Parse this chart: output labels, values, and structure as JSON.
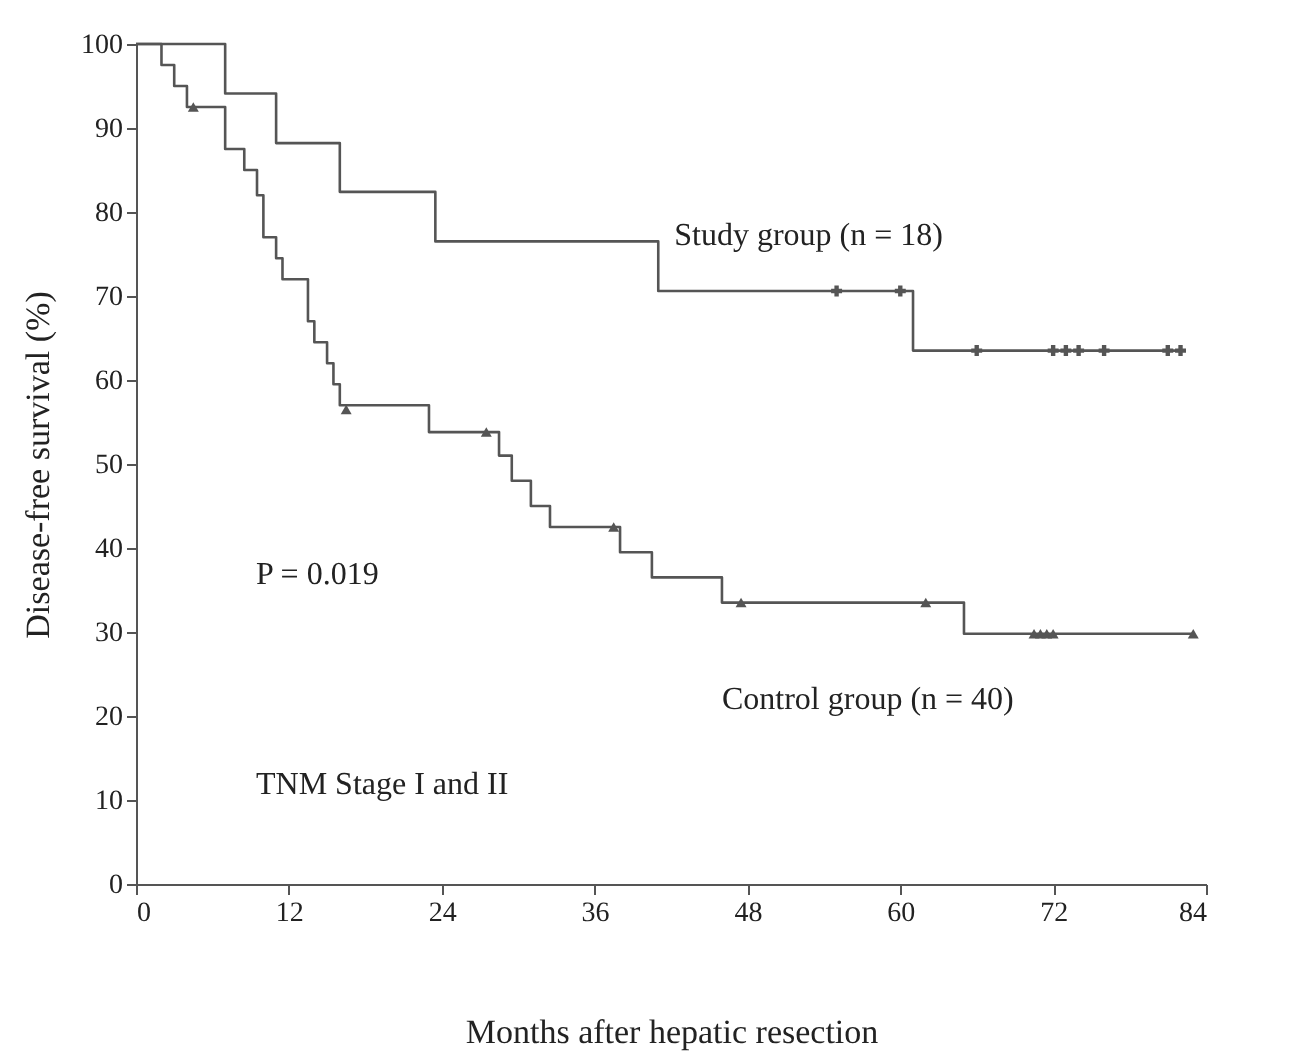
{
  "chart_data": {
    "type": "step",
    "xlabel": "Months after hepatic resection",
    "ylabel": "Disease-free survival (%)",
    "xlim": [
      0,
      84
    ],
    "xticks": [
      0,
      12,
      24,
      36,
      48,
      60,
      72,
      84
    ],
    "ylim": [
      0,
      100
    ],
    "yticks": [
      0,
      10,
      20,
      30,
      40,
      50,
      60,
      70,
      80,
      90,
      100
    ],
    "grid": false,
    "series": [
      {
        "name": "Study group (n = 18)",
        "color": "#555555",
        "marker": "none",
        "x": [
          0,
          7,
          11,
          16,
          23.5,
          41,
          61,
          82
        ],
        "values": [
          100,
          94.1,
          88.2,
          82.4,
          76.5,
          70.6,
          63.5,
          63.5
        ]
      },
      {
        "name": "Control group (n = 40)",
        "color": "#555555",
        "marker": "none",
        "x": [
          0,
          2,
          3,
          4,
          7,
          8.5,
          9.5,
          10,
          11,
          11.5,
          13.5,
          14,
          15,
          15.5,
          16,
          23,
          28.5,
          29.5,
          31,
          32.5,
          38,
          40.5,
          46,
          65,
          83
        ],
        "values": [
          100,
          97.5,
          95,
          92.5,
          87.5,
          85,
          82,
          77,
          74.5,
          72,
          67,
          64.5,
          62,
          59.5,
          57,
          53.8,
          51,
          48,
          45,
          42.5,
          39.5,
          36.5,
          33.5,
          29.8,
          29.8
        ]
      },
      {
        "color": "#555555",
        "type": "scatter",
        "marker": "cross",
        "x": [
          55,
          60,
          66,
          72,
          73,
          74,
          76,
          81,
          82
        ],
        "values": [
          70.6,
          70.6,
          63.5,
          63.5,
          63.5,
          63.5,
          63.5,
          63.5,
          63.5
        ]
      },
      {
        "color": "#555555",
        "type": "scatter",
        "marker": "triangle",
        "x": [
          4.5,
          16.5,
          27.5,
          37.5,
          47.5,
          62,
          70.5,
          71,
          71.5,
          72,
          83
        ],
        "values": [
          92.5,
          56.5,
          53.8,
          42.5,
          33.5,
          33.5,
          29.8,
          29.8,
          29.8,
          29.8,
          29.8
        ]
      }
    ],
    "annotations": [
      "P = 0.019",
      "TNM Stage I and II"
    ]
  }
}
